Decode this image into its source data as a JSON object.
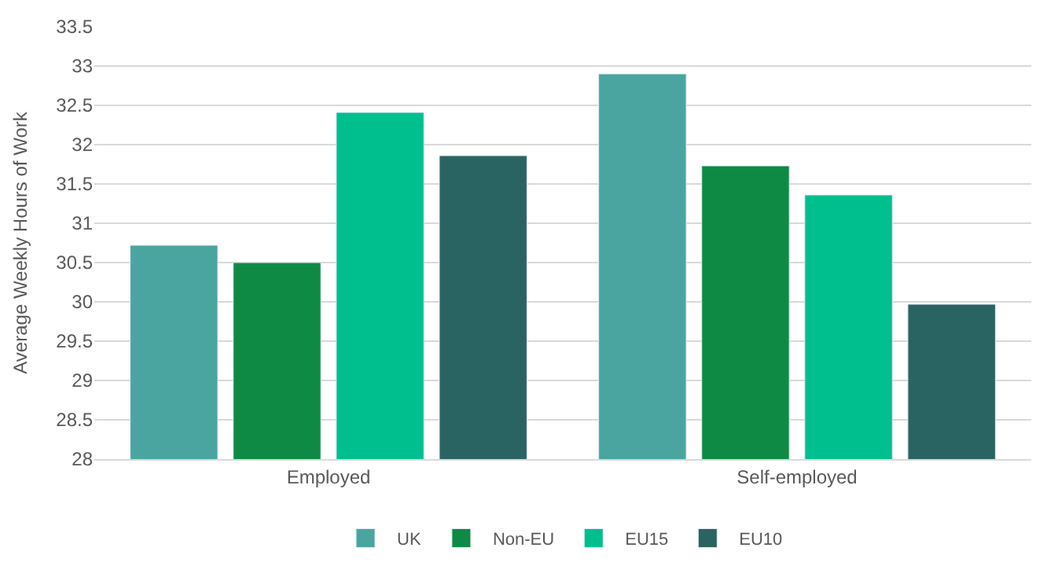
{
  "chart_data": {
    "type": "bar",
    "ylabel": "Average Weekly Hours of Work",
    "categories": [
      "Employed",
      "Self-employed"
    ],
    "series": [
      {
        "name": "UK",
        "color": "#4aa5a0",
        "values": [
          30.72,
          32.9
        ]
      },
      {
        "name": "Non-EU",
        "color": "#0f8a45",
        "values": [
          30.5,
          31.73
        ]
      },
      {
        "name": "EU15",
        "color": "#00bf8f",
        "values": [
          32.41,
          31.36
        ]
      },
      {
        "name": "EU10",
        "color": "#2a6462",
        "values": [
          31.86,
          29.97
        ]
      }
    ],
    "ylim": [
      28,
      33.5
    ],
    "yticks": [
      28,
      28.5,
      29,
      29.5,
      30,
      30.5,
      31,
      31.5,
      32,
      32.5,
      33,
      33.5
    ],
    "grid": "y",
    "legend": "bottom"
  }
}
